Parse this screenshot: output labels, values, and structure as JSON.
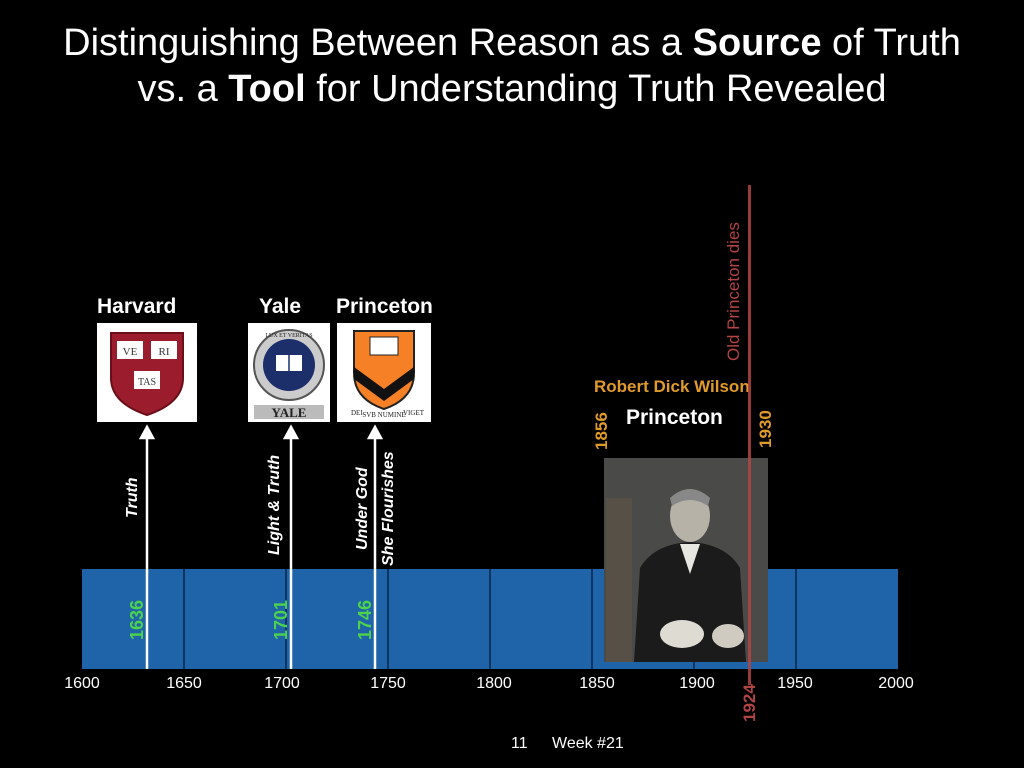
{
  "title": {
    "line1_pre": "Distinguishing Between Reason as a ",
    "line1_bold": "Source",
    "line1_post": " of Truth",
    "line2_pre": "vs. a ",
    "line2_bold": "Tool",
    "line2_post": " for Understanding Truth Revealed"
  },
  "colleges": [
    {
      "name": "Harvard",
      "motto": "Truth",
      "year": "1636",
      "seal_text": [
        "VE",
        "RI",
        "TAS"
      ]
    },
    {
      "name": "Yale",
      "motto": "Light & Truth",
      "year": "1701",
      "seal_text": [
        "LUX ET VERITAS",
        "YALE"
      ]
    },
    {
      "name": "Princeton",
      "motto_line1": "Under God",
      "motto_line2": "She Flourishes",
      "year": "1746",
      "seal_text": [
        "DEI",
        "SVB NUMINE",
        "VIGET"
      ]
    }
  ],
  "event": {
    "label": "Old Princeton dies",
    "year": "1924",
    "color": "#b34444"
  },
  "wilson": {
    "name": "Robert Dick Wilson",
    "institution": "Princeton",
    "birth": "1856",
    "death": "1930",
    "name_color": "#e09a2c"
  },
  "axis": {
    "ticks": [
      "1600",
      "1650",
      "1700",
      "1750",
      "1800",
      "1850",
      "1900",
      "1950",
      "2000"
    ],
    "bar_color": "#1f63a8"
  },
  "footer": {
    "page": "11",
    "week": "Week #21"
  }
}
